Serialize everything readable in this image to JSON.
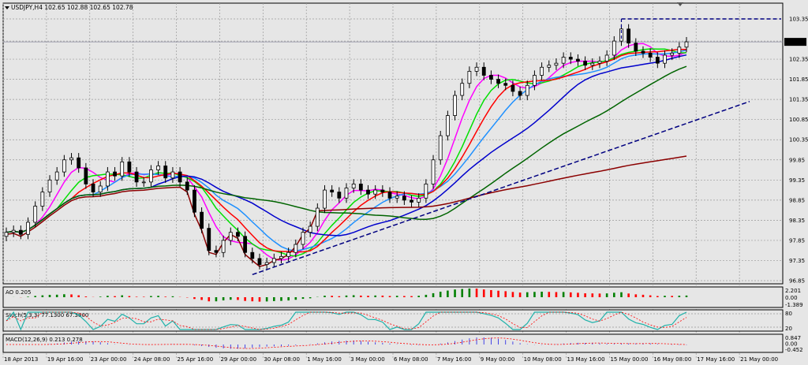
{
  "chart_data": {
    "type": "line",
    "title": "USDJPY,H4",
    "ohlc": [
      "102.65",
      "102.88",
      "102.65",
      "102.78"
    ],
    "last_price": "102.78",
    "ylim": [
      96.85,
      103.35
    ],
    "y_ticks": [
      "103.35",
      "102.80",
      "102.35",
      "101.85",
      "101.35",
      "100.85",
      "100.35",
      "99.85",
      "99.35",
      "98.85",
      "98.35",
      "97.85",
      "97.35",
      "96.85"
    ],
    "x_ticks": [
      "18 Apr 2013",
      "19 Apr 16:00",
      "23 Apr 00:00",
      "24 Apr 08:00",
      "25 Apr 16:00",
      "29 Apr 00:00",
      "30 Apr 08:00",
      "1 May 16:00",
      "3 May 00:00",
      "6 May 08:00",
      "7 May 16:00",
      "9 May 00:00",
      "10 May 08:00",
      "13 May 16:00",
      "15 May 00:00",
      "16 May 08:00",
      "17 May 16:00",
      "21 May 00:00"
    ],
    "close": [
      98.05,
      98.1,
      98.0,
      98.3,
      98.7,
      99.05,
      99.35,
      99.55,
      99.85,
      99.9,
      99.65,
      99.25,
      99.05,
      99.2,
      99.55,
      99.45,
      99.8,
      99.55,
      99.3,
      99.3,
      99.6,
      99.7,
      99.4,
      99.55,
      99.3,
      99.1,
      98.55,
      98.15,
      97.6,
      97.55,
      97.85,
      98.05,
      97.95,
      97.55,
      97.4,
      97.25,
      97.3,
      97.4,
      97.45,
      97.55,
      97.75,
      98.05,
      98.2,
      98.65,
      99.1,
      99.05,
      98.9,
      99.15,
      99.25,
      99.1,
      99.0,
      99.1,
      99.05,
      98.9,
      98.95,
      98.85,
      98.8,
      98.9,
      99.25,
      99.85,
      100.45,
      100.95,
      101.45,
      101.75,
      102.05,
      102.15,
      101.95,
      101.85,
      101.75,
      101.7,
      101.55,
      101.45,
      101.7,
      101.95,
      102.15,
      102.2,
      102.25,
      102.4,
      102.35,
      102.3,
      102.2,
      102.25,
      102.3,
      102.45,
      102.8,
      103.1,
      102.75,
      102.55,
      102.5,
      102.4,
      102.25,
      102.45,
      102.5,
      102.65,
      102.78
    ],
    "moving_averages": [
      {
        "color": "#ff00ff",
        "period": 5
      },
      {
        "color": "#00e000",
        "period": 8
      },
      {
        "color": "#1e90ff",
        "period": 13
      },
      {
        "color": "#ff0000",
        "period": 10
      },
      {
        "color": "#0000cc",
        "period": 21
      },
      {
        "color": "#006400",
        "period": 34
      },
      {
        "color": "#8b0000",
        "period": 120
      }
    ],
    "trendline_color": "#000080",
    "resistance_level": 103.35,
    "indicators": {
      "ao": {
        "label": "AO 0.205",
        "ticks": [
          "2.201",
          "0.00",
          "-1.389"
        ]
      },
      "stoch": {
        "label": "Stoch(5,3,3) 77.1300 67.3800",
        "ticks": [
          "80",
          "20"
        ]
      },
      "macd": {
        "label": "MACD(12,26,9) 0.213 0.278",
        "ticks": [
          "0.847",
          "0.00",
          "-0.452"
        ]
      }
    }
  }
}
